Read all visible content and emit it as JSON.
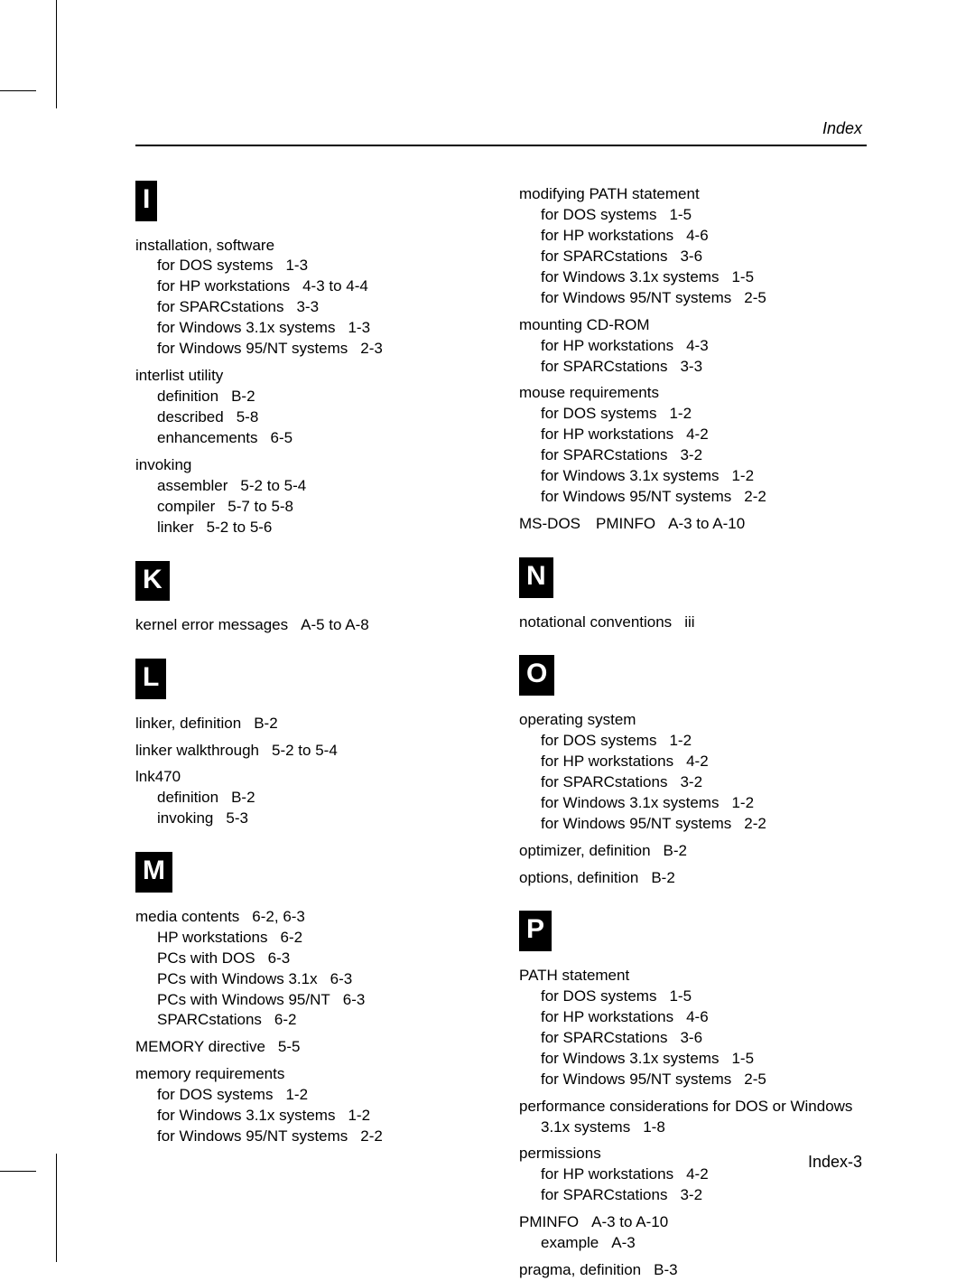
{
  "header_label": "Index",
  "page_number": "Index-3",
  "left": [
    {
      "type": "letter",
      "text": "I"
    },
    {
      "type": "block",
      "lines": [
        {
          "level": 0,
          "term": "installation, software",
          "ref": ""
        },
        {
          "level": 1,
          "term": "for DOS systems",
          "ref": "1-3"
        },
        {
          "level": 1,
          "term": "for HP workstations",
          "ref": "4-3 to 4-4"
        },
        {
          "level": 1,
          "term": "for SPARCstations",
          "ref": "3-3"
        },
        {
          "level": 1,
          "term": "for Windows 3.1x systems",
          "ref": "1-3"
        },
        {
          "level": 1,
          "term": "for Windows 95/NT systems",
          "ref": "2-3"
        }
      ]
    },
    {
      "type": "block",
      "lines": [
        {
          "level": 0,
          "term": "interlist utility",
          "ref": ""
        },
        {
          "level": 1,
          "term": "definition",
          "ref": "B-2"
        },
        {
          "level": 1,
          "term": "described",
          "ref": "5-8"
        },
        {
          "level": 1,
          "term": "enhancements",
          "ref": "6-5"
        }
      ]
    },
    {
      "type": "block",
      "lines": [
        {
          "level": 0,
          "term": "invoking",
          "ref": ""
        },
        {
          "level": 1,
          "term": "assembler",
          "ref": "5-2 to 5-4"
        },
        {
          "level": 1,
          "term": "compiler",
          "ref": "5-7 to 5-8"
        },
        {
          "level": 1,
          "term": "linker",
          "ref": "5-2 to 5-6"
        }
      ]
    },
    {
      "type": "letter",
      "text": "K"
    },
    {
      "type": "block",
      "lines": [
        {
          "level": 0,
          "term": "kernel error messages",
          "ref": "A-5 to A-8"
        }
      ]
    },
    {
      "type": "letter",
      "text": "L"
    },
    {
      "type": "block",
      "lines": [
        {
          "level": 0,
          "term": "linker, definition",
          "ref": "B-2"
        }
      ]
    },
    {
      "type": "block",
      "lines": [
        {
          "level": 0,
          "term": "linker walkthrough",
          "ref": "5-2 to 5-4"
        }
      ]
    },
    {
      "type": "block",
      "lines": [
        {
          "level": 0,
          "term": "lnk470",
          "ref": ""
        },
        {
          "level": 1,
          "term": "definition",
          "ref": "B-2"
        },
        {
          "level": 1,
          "term": "invoking",
          "ref": "5-3"
        }
      ]
    },
    {
      "type": "letter",
      "text": "M"
    },
    {
      "type": "block",
      "lines": [
        {
          "level": 0,
          "term": "media contents",
          "ref": "6-2, 6-3"
        },
        {
          "level": 1,
          "term": "HP workstations",
          "ref": "6-2"
        },
        {
          "level": 1,
          "term": "PCs with DOS",
          "ref": "6-3"
        },
        {
          "level": 1,
          "term": "PCs with Windows 3.1x",
          "ref": "6-3"
        },
        {
          "level": 1,
          "term": "PCs with Windows 95/NT",
          "ref": "6-3"
        },
        {
          "level": 1,
          "term": "SPARCstations",
          "ref": "6-2"
        }
      ]
    },
    {
      "type": "block",
      "lines": [
        {
          "level": 0,
          "term": "MEMORY directive",
          "ref": "5-5"
        }
      ]
    },
    {
      "type": "block",
      "lines": [
        {
          "level": 0,
          "term": "memory requirements",
          "ref": ""
        },
        {
          "level": 1,
          "term": "for DOS systems",
          "ref": "1-2"
        },
        {
          "level": 1,
          "term": "for Windows 3.1x systems",
          "ref": "1-2"
        },
        {
          "level": 1,
          "term": "for Windows 95/NT systems",
          "ref": "2-2"
        }
      ]
    }
  ],
  "right": [
    {
      "type": "block",
      "lines": [
        {
          "level": 0,
          "term": "modifying PATH statement",
          "ref": ""
        },
        {
          "level": 1,
          "term": "for DOS systems",
          "ref": "1-5"
        },
        {
          "level": 1,
          "term": "for HP workstations",
          "ref": "4-6"
        },
        {
          "level": 1,
          "term": "for SPARCstations",
          "ref": "3-6"
        },
        {
          "level": 1,
          "term": "for Windows 3.1x systems",
          "ref": "1-5"
        },
        {
          "level": 1,
          "term": "for Windows 95/NT systems",
          "ref": "2-5"
        }
      ]
    },
    {
      "type": "block",
      "lines": [
        {
          "level": 0,
          "term": "mounting CD-ROM",
          "ref": ""
        },
        {
          "level": 1,
          "term": "for HP workstations",
          "ref": "4-3"
        },
        {
          "level": 1,
          "term": "for SPARCstations",
          "ref": "3-3"
        }
      ]
    },
    {
      "type": "block",
      "lines": [
        {
          "level": 0,
          "term": "mouse requirements",
          "ref": ""
        },
        {
          "level": 1,
          "term": "for DOS systems",
          "ref": "1-2"
        },
        {
          "level": 1,
          "term": "for HP workstations",
          "ref": "4-2"
        },
        {
          "level": 1,
          "term": "for SPARCstations",
          "ref": "3-2"
        },
        {
          "level": 1,
          "term": "for Windows 3.1x systems",
          "ref": "1-2"
        },
        {
          "level": 1,
          "term": "for Windows 95/NT systems",
          "ref": "2-2"
        }
      ]
    },
    {
      "type": "block",
      "lines": [
        {
          "level": 0,
          "term": "MS-DOS PMINFO",
          "ref": "A-3 to A-10"
        }
      ]
    },
    {
      "type": "letter",
      "text": "N"
    },
    {
      "type": "block",
      "lines": [
        {
          "level": 0,
          "term": "notational conventions",
          "ref": "iii"
        }
      ]
    },
    {
      "type": "letter",
      "text": "O"
    },
    {
      "type": "block",
      "lines": [
        {
          "level": 0,
          "term": "operating system",
          "ref": ""
        },
        {
          "level": 1,
          "term": "for DOS systems",
          "ref": "1-2"
        },
        {
          "level": 1,
          "term": "for HP workstations",
          "ref": "4-2"
        },
        {
          "level": 1,
          "term": "for SPARCstations",
          "ref": "3-2"
        },
        {
          "level": 1,
          "term": "for Windows 3.1x systems",
          "ref": "1-2"
        },
        {
          "level": 1,
          "term": "for Windows 95/NT systems",
          "ref": "2-2"
        }
      ]
    },
    {
      "type": "block",
      "lines": [
        {
          "level": 0,
          "term": "optimizer, definition",
          "ref": "B-2"
        }
      ]
    },
    {
      "type": "block",
      "lines": [
        {
          "level": 0,
          "term": "options, definition",
          "ref": "B-2"
        }
      ]
    },
    {
      "type": "letter",
      "text": "P"
    },
    {
      "type": "block",
      "lines": [
        {
          "level": 0,
          "term": "PATH statement",
          "ref": ""
        },
        {
          "level": 1,
          "term": "for DOS systems",
          "ref": "1-5"
        },
        {
          "level": 1,
          "term": "for HP workstations",
          "ref": "4-6"
        },
        {
          "level": 1,
          "term": "for SPARCstations",
          "ref": "3-6"
        },
        {
          "level": 1,
          "term": "for Windows 3.1x systems",
          "ref": "1-5"
        },
        {
          "level": 1,
          "term": "for Windows 95/NT systems",
          "ref": "2-5"
        }
      ]
    },
    {
      "type": "block",
      "lines": [
        {
          "level": 0,
          "term": "performance considerations for DOS or Windows 3.1x systems",
          "ref": "1-8",
          "hang": true
        }
      ]
    },
    {
      "type": "block",
      "lines": [
        {
          "level": 0,
          "term": "permissions",
          "ref": ""
        },
        {
          "level": 1,
          "term": "for HP workstations",
          "ref": "4-2"
        },
        {
          "level": 1,
          "term": "for SPARCstations",
          "ref": "3-2"
        }
      ]
    },
    {
      "type": "block",
      "lines": [
        {
          "level": 0,
          "term": "PMINFO",
          "ref": "A-3 to A-10"
        },
        {
          "level": 1,
          "term": "example",
          "ref": "A-3"
        }
      ]
    },
    {
      "type": "block",
      "lines": [
        {
          "level": 0,
          "term": "pragma, definition",
          "ref": "B-3"
        }
      ]
    }
  ]
}
